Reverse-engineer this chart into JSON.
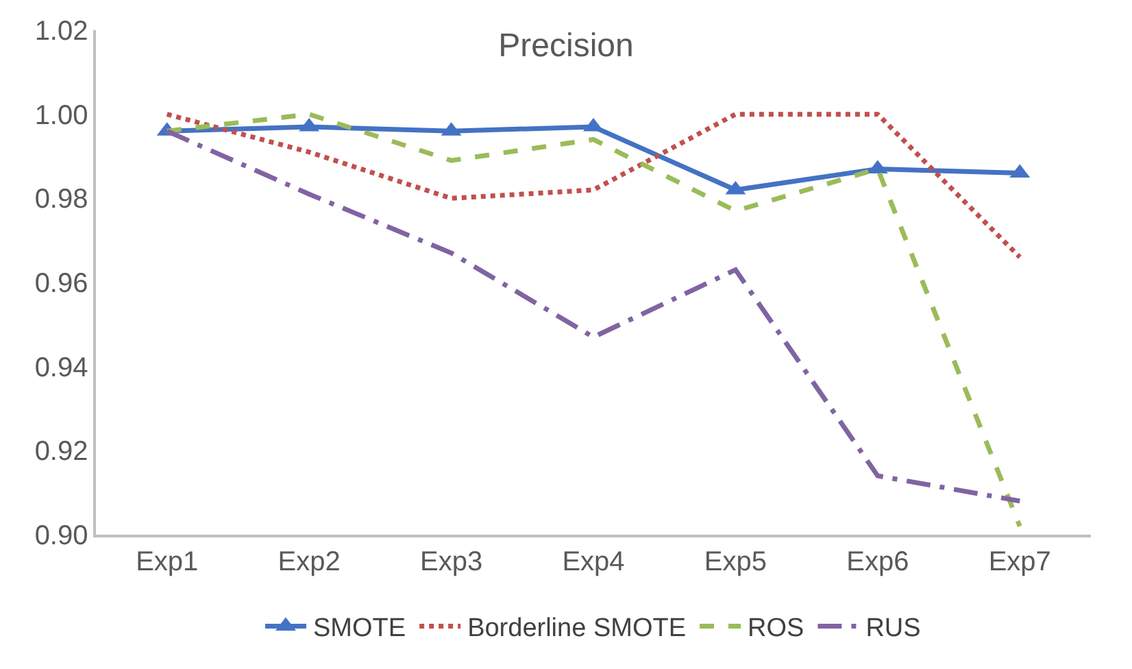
{
  "chart_data": {
    "type": "line",
    "title": "Precision",
    "categories": [
      "Exp1",
      "Exp2",
      "Exp3",
      "Exp4",
      "Exp5",
      "Exp6",
      "Exp7"
    ],
    "series": [
      {
        "name": "SMOTE",
        "color": "#4472c4",
        "marker": "triangle",
        "line_style": "solid",
        "values": [
          0.996,
          0.997,
          0.996,
          0.997,
          0.982,
          0.987,
          0.986
        ]
      },
      {
        "name": "Borderline SMOTE",
        "color": "#c0504d",
        "marker": "none",
        "line_style": "dotted",
        "values": [
          1.0,
          0.991,
          0.98,
          0.982,
          1.0,
          1.0,
          0.966
        ]
      },
      {
        "name": "ROS",
        "color": "#9bbb59",
        "marker": "none",
        "line_style": "dashed",
        "values": [
          0.996,
          1.0,
          0.989,
          0.994,
          0.977,
          0.987,
          0.902
        ]
      },
      {
        "name": "RUS",
        "color": "#8064a2",
        "marker": "none",
        "line_style": "dashdot",
        "values": [
          0.996,
          0.981,
          0.967,
          0.947,
          0.963,
          0.914,
          0.908
        ]
      }
    ],
    "ylim": [
      0.9,
      1.02
    ],
    "yticks": [
      {
        "value": 0.9,
        "label": "0.90"
      },
      {
        "value": 0.92,
        "label": "0.92"
      },
      {
        "value": 0.94,
        "label": "0.94"
      },
      {
        "value": 0.96,
        "label": "0.96"
      },
      {
        "value": 0.98,
        "label": "0.98"
      },
      {
        "value": 1.0,
        "label": "1.00"
      },
      {
        "value": 1.02,
        "label": "1.02"
      }
    ],
    "legend": "bottom"
  }
}
